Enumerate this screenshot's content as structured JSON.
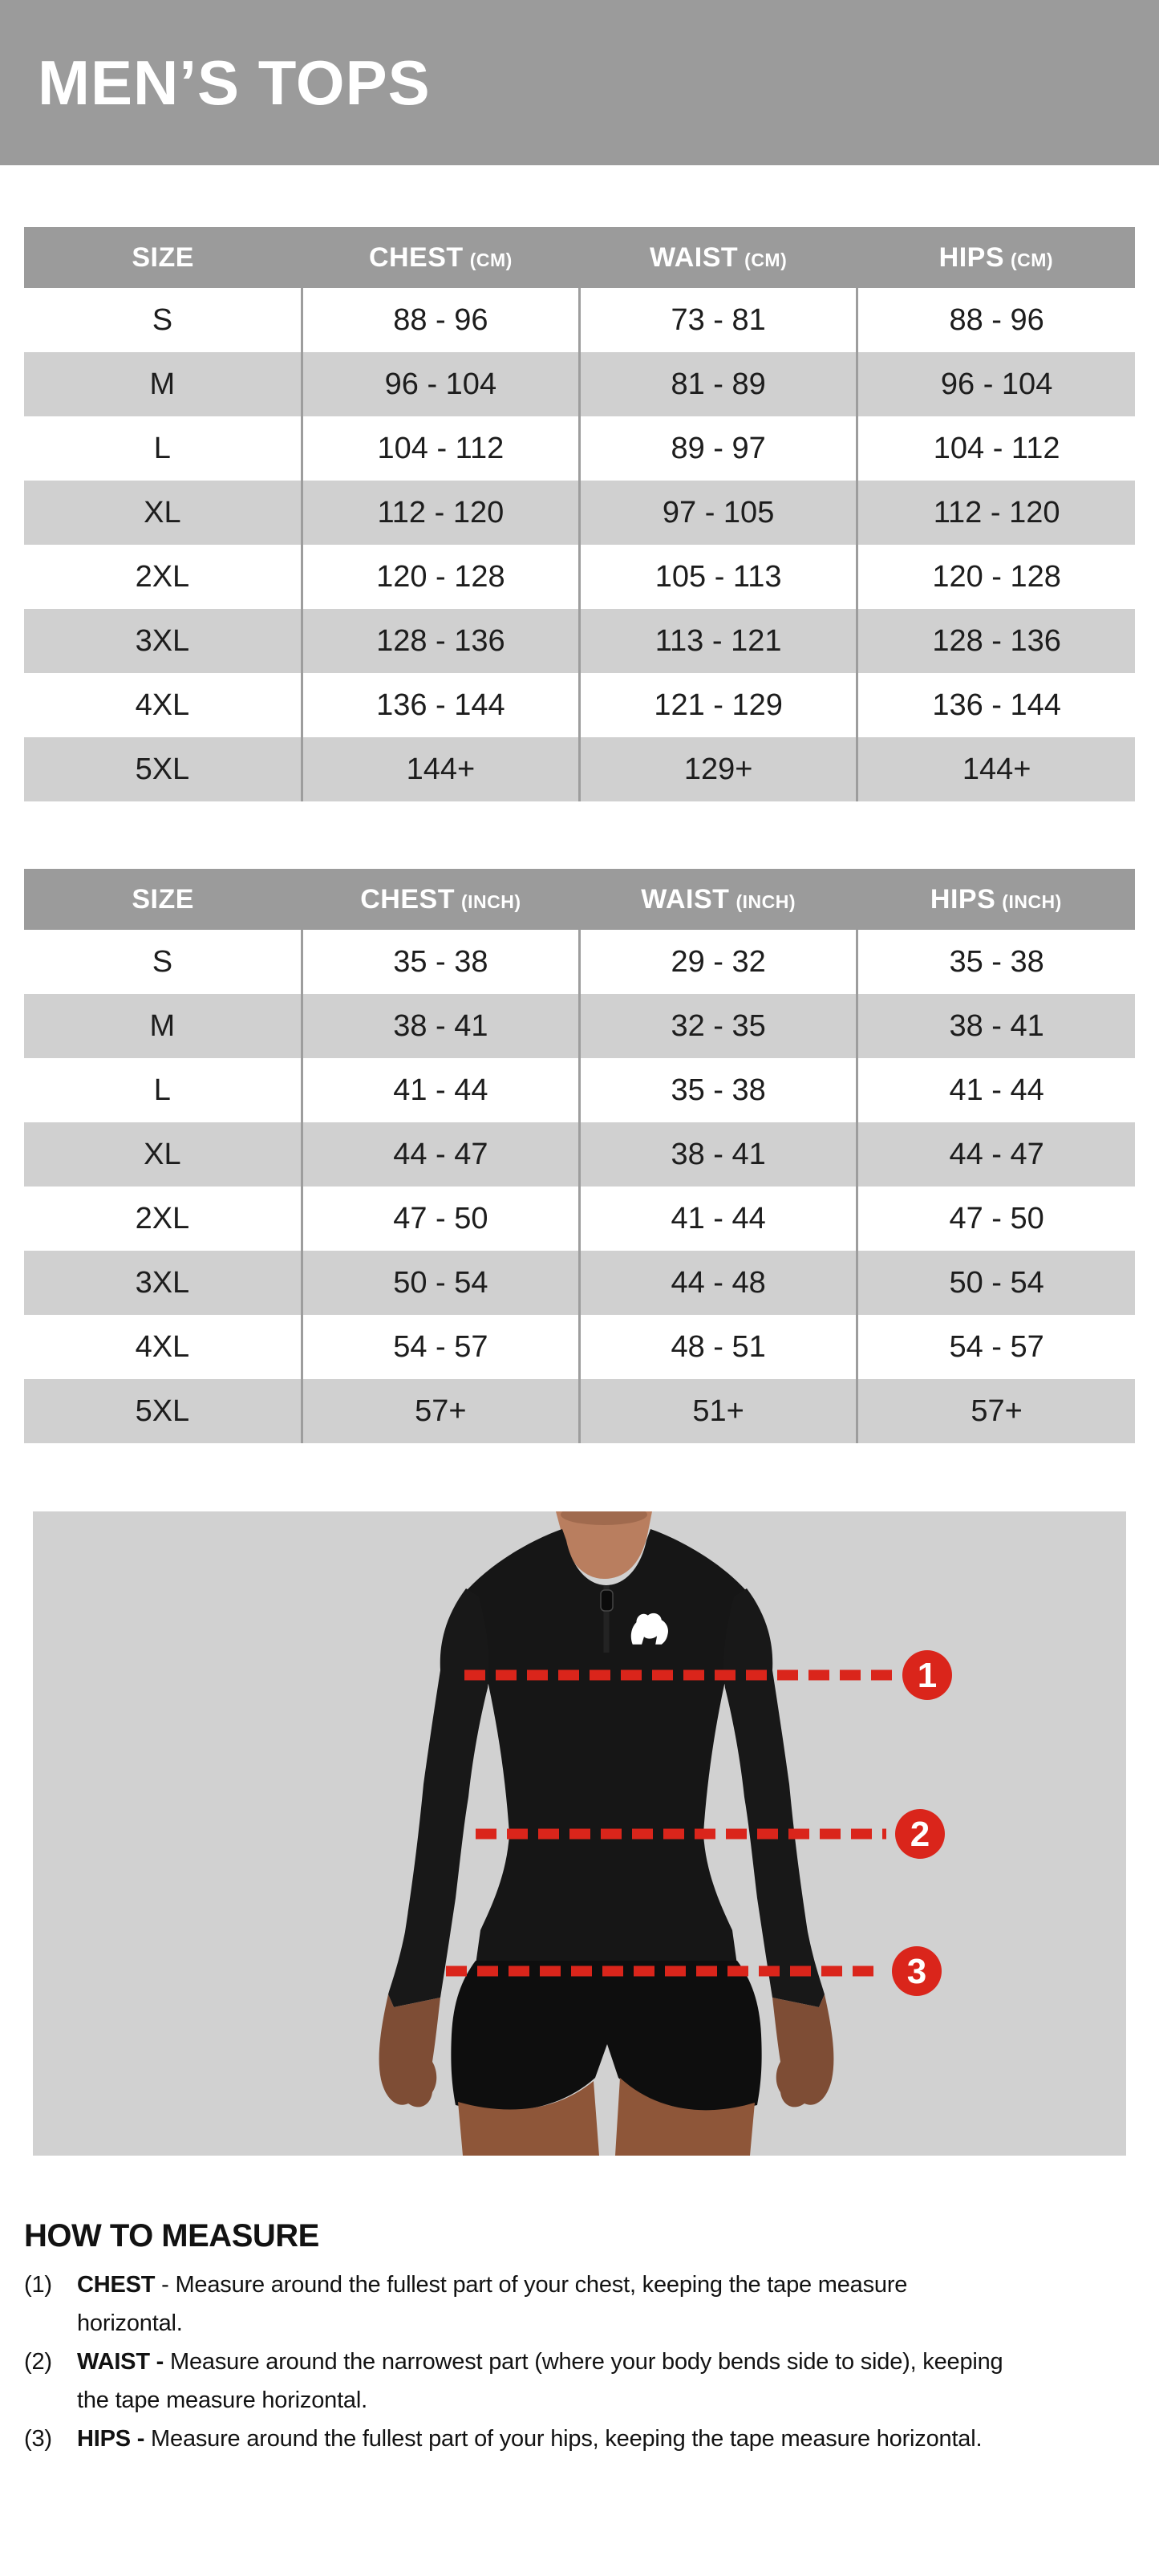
{
  "title": "MEN’S TOPS",
  "colors": {
    "band_gray": "#9b9b9b",
    "row_alt_gray": "#d0d0d0",
    "photo_background": "#d1d1d1",
    "accent_red": "#da251b",
    "text_dark": "#1d1d1d",
    "header_text": "#ffffff"
  },
  "tables": [
    {
      "id": "cm",
      "columns": [
        {
          "label": "SIZE",
          "unit": ""
        },
        {
          "label": "CHEST",
          "unit": "(CM)"
        },
        {
          "label": "WAIST",
          "unit": "(CM)"
        },
        {
          "label": "HIPS",
          "unit": "(CM)"
        }
      ],
      "rows": [
        [
          "S",
          "88 - 96",
          "73 - 81",
          "88 - 96"
        ],
        [
          "M",
          "96 - 104",
          "81 - 89",
          "96 - 104"
        ],
        [
          "L",
          "104 - 112",
          "89 - 97",
          "104 - 112"
        ],
        [
          "XL",
          "112 - 120",
          "97 - 105",
          "112 - 120"
        ],
        [
          "2XL",
          "120 - 128",
          "105 - 113",
          "120 - 128"
        ],
        [
          "3XL",
          "128 - 136",
          "113 - 121",
          "128 - 136"
        ],
        [
          "4XL",
          "136 - 144",
          "121 - 129",
          "136 - 144"
        ],
        [
          "5XL",
          "144+",
          "129+",
          "144+"
        ]
      ]
    },
    {
      "id": "inch",
      "columns": [
        {
          "label": "SIZE",
          "unit": ""
        },
        {
          "label": "CHEST",
          "unit": "(INCH)"
        },
        {
          "label": "WAIST",
          "unit": "(INCH)"
        },
        {
          "label": "HIPS",
          "unit": "(INCH)"
        }
      ],
      "rows": [
        [
          "S",
          "35 - 38",
          "29 - 32",
          "35 - 38"
        ],
        [
          "M",
          "38 - 41",
          "32 - 35",
          "38 - 41"
        ],
        [
          "L",
          "41 - 44",
          "35 - 38",
          "41 - 44"
        ],
        [
          "XL",
          "44 - 47",
          "38 - 41",
          "44 - 47"
        ],
        [
          "2XL",
          "47 - 50",
          "41 - 44",
          "47 - 50"
        ],
        [
          "3XL",
          "50 - 54",
          "44 - 48",
          "50 - 54"
        ],
        [
          "4XL",
          "54 - 57",
          "48 - 51",
          "54 - 57"
        ],
        [
          "5XL",
          "57+",
          "51+",
          "57+"
        ]
      ]
    }
  ],
  "figure": {
    "description": "model-wearing-black-quarter-zip-long-sleeve-and-shorts",
    "logo": "gorilla-logo",
    "markers": [
      {
        "number": "1",
        "label": "chest"
      },
      {
        "number": "2",
        "label": "waist"
      },
      {
        "number": "3",
        "label": "hips"
      }
    ]
  },
  "how_to_measure": {
    "heading": "HOW TO MEASURE",
    "items": [
      {
        "num": "(1)",
        "term": "CHEST",
        "text": "- Measure around the fullest part of your chest, keeping the tape measure horizontal."
      },
      {
        "num": "(2)",
        "term": "WAIST -",
        "text": "Measure around the narrowest part (where your body bends side to side), keeping the tape measure horizontal."
      },
      {
        "num": "(3)",
        "term": "HIPS -",
        "text": "Measure around the fullest part of your hips, keeping the tape measure horizontal."
      }
    ]
  }
}
